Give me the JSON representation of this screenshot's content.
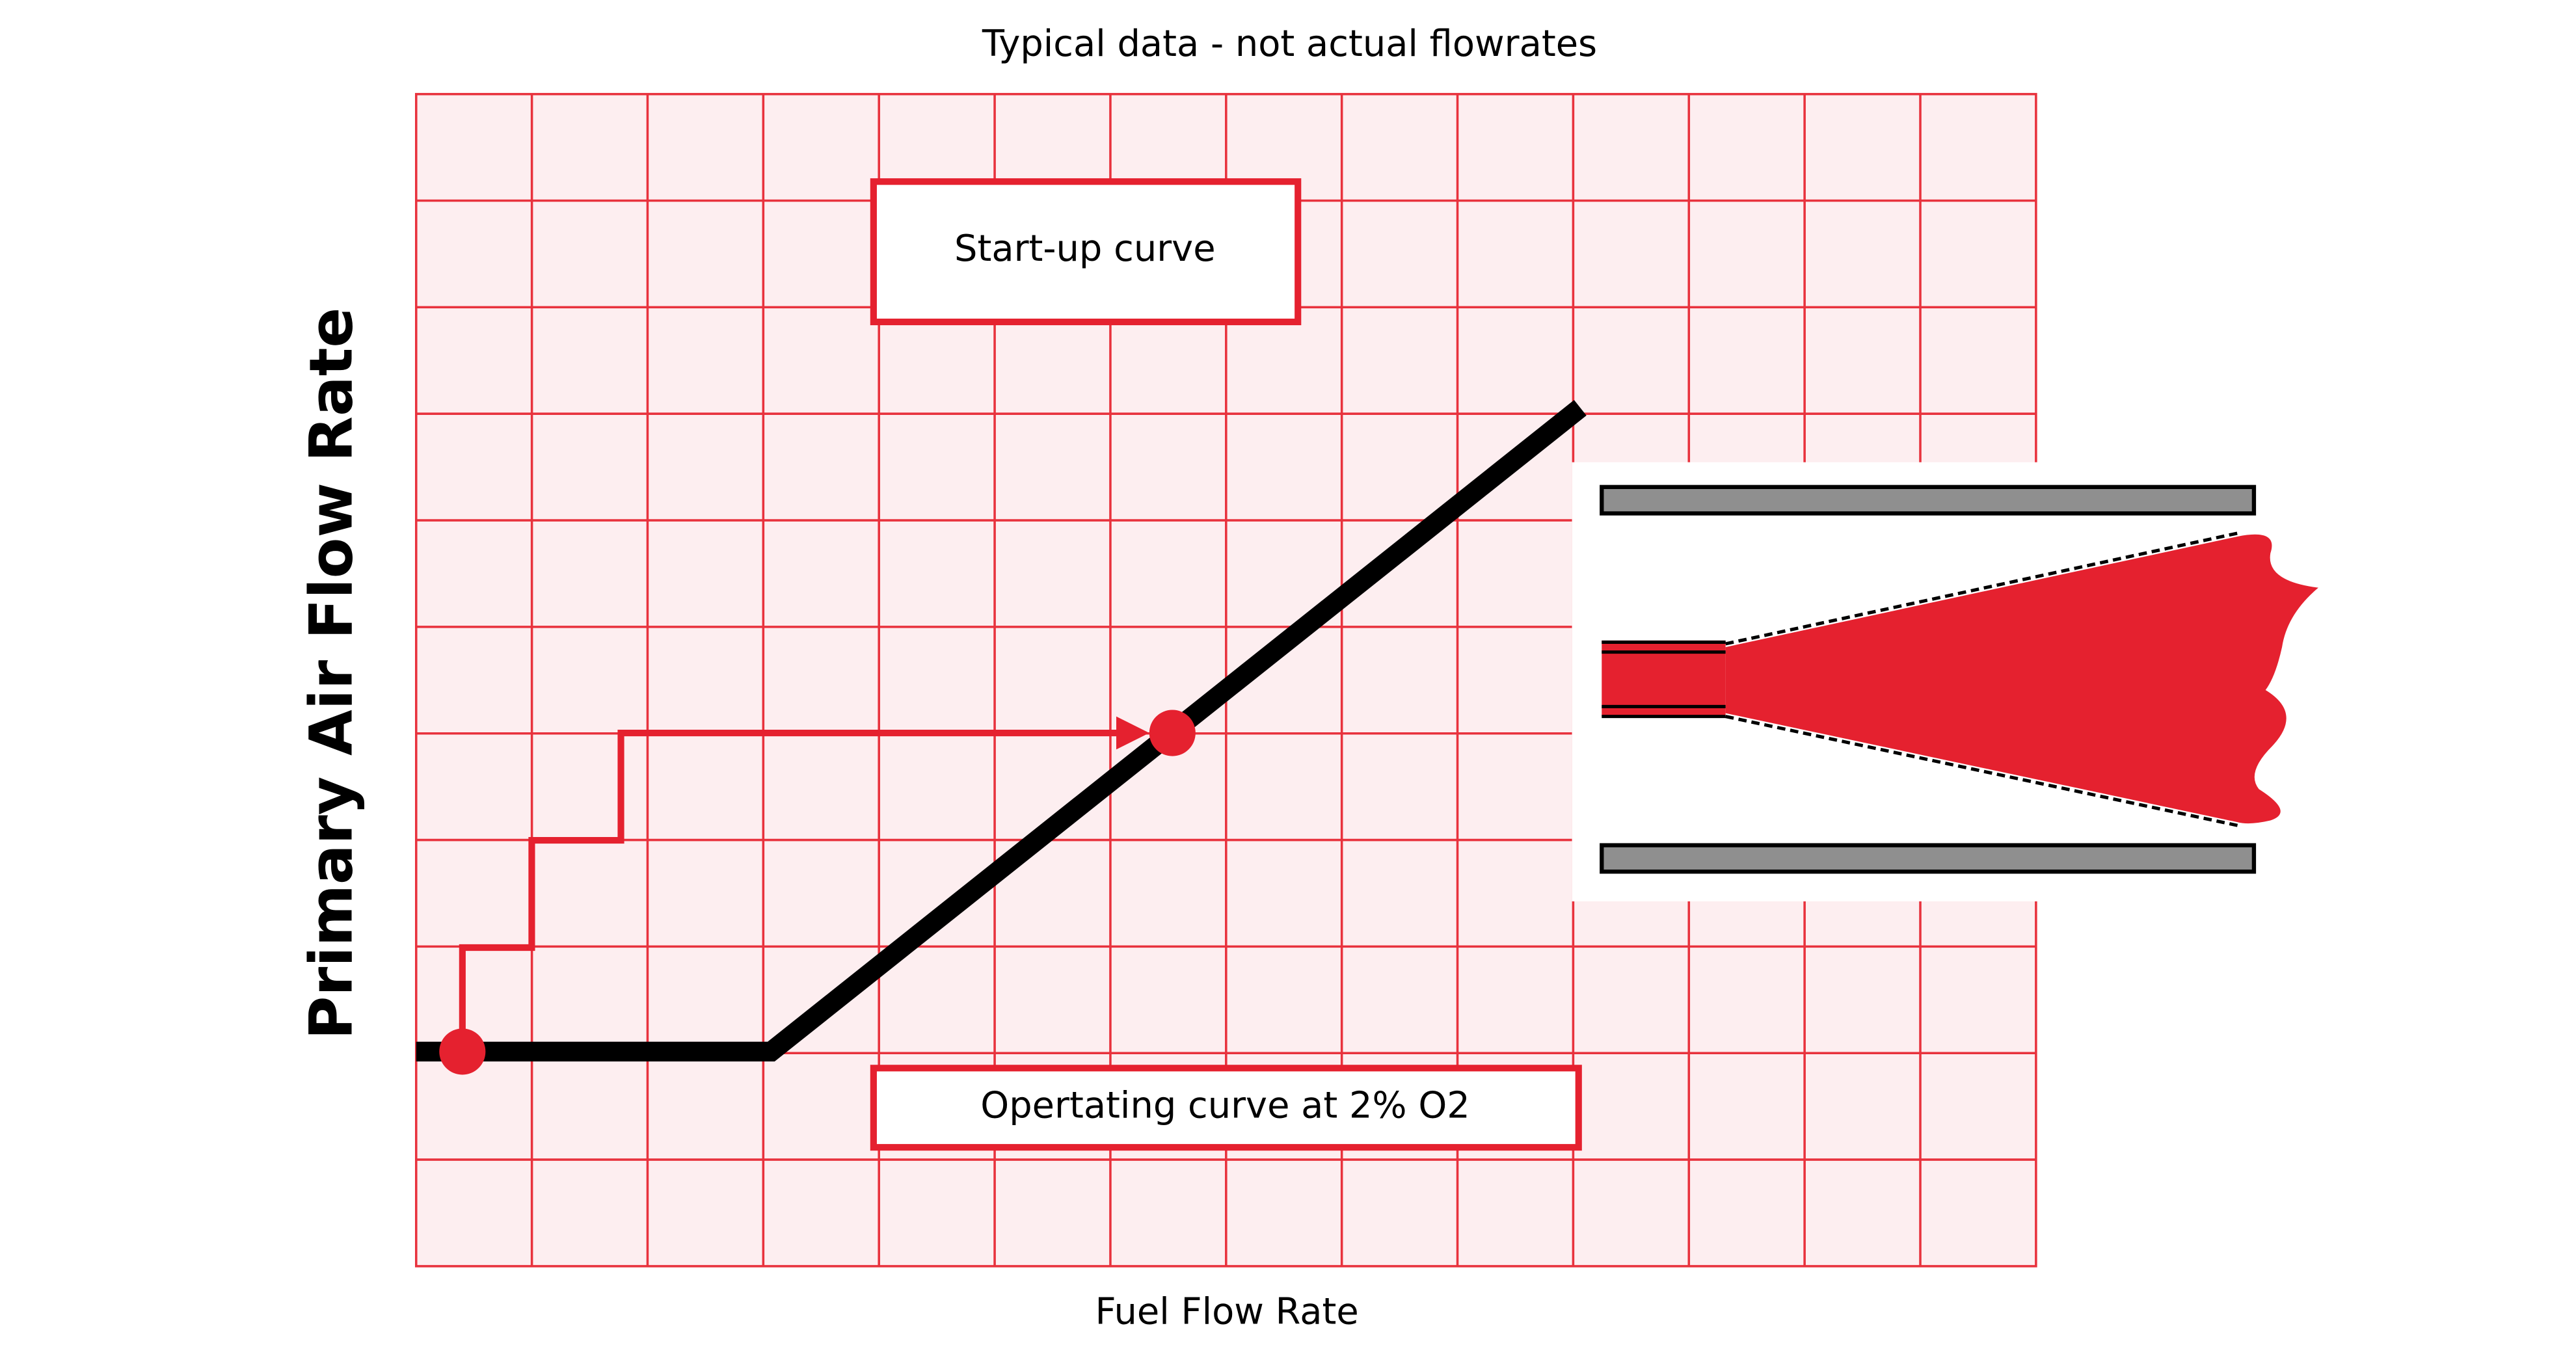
{
  "title": "Typical data - not actual flowrates",
  "x_label": "Fuel Flow Rate",
  "y_label": "Primary Air Flow Rate",
  "annotations": [
    "Start-up curve",
    "Opertating curve at 2% O2"
  ]
}
